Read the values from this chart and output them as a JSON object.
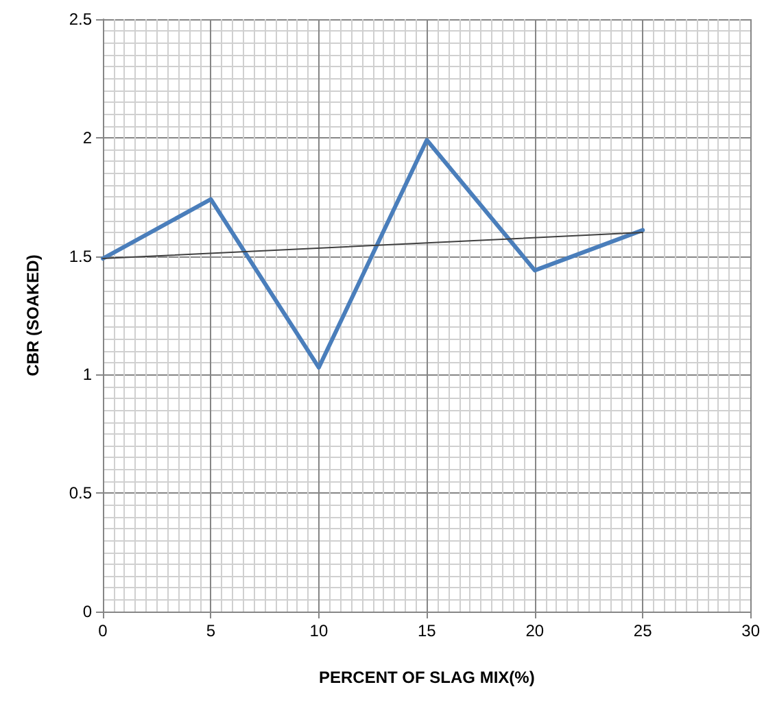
{
  "chart_data": {
    "type": "line",
    "xlabel": "PERCENT OF SLAG MIX(%)",
    "ylabel": "CBR (SOAKED)",
    "x": [
      0,
      5,
      10,
      15,
      20,
      25
    ],
    "series": [
      {
        "color": "#4a7ebb",
        "values": [
          1.49,
          1.74,
          1.03,
          1.99,
          1.44,
          1.61
        ]
      },
      {
        "type": "line",
        "color": "#404040",
        "x": [
          0,
          25
        ],
        "values": [
          1.49,
          1.6
        ]
      }
    ],
    "xlim": [
      0,
      30
    ],
    "xticks": [
      0,
      5,
      10,
      15,
      20,
      25,
      30
    ],
    "ylim": [
      0,
      2.5
    ],
    "yticks": [
      0,
      0.5,
      1,
      1.5,
      2,
      2.5
    ],
    "grid": true,
    "marker": "none",
    "line_style": "solid"
  }
}
